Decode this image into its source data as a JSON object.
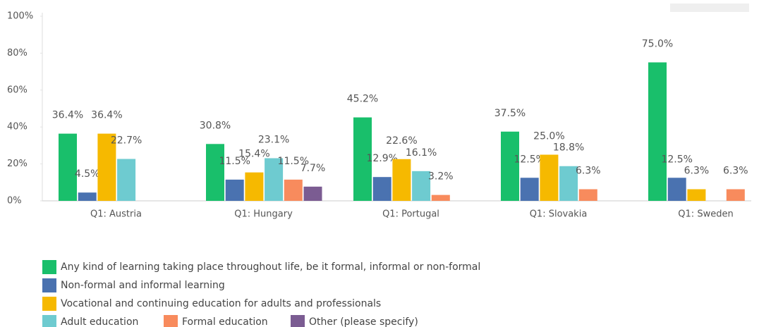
{
  "chart_data": {
    "type": "bar",
    "categories": [
      "Q1: Austria",
      "Q1: Hungary",
      "Q1: Portugal",
      "Q1: Slovakia",
      "Q1: Sweden"
    ],
    "series": [
      {
        "name": "Any kind of learning taking place throughout life, be it formal, informal or non-formal",
        "color": "#19bf6b",
        "values": [
          36.4,
          30.8,
          45.2,
          37.5,
          75.0
        ],
        "value_labels": [
          "36.4%",
          "30.8%",
          "45.2%",
          "37.5%",
          "75.0%"
        ]
      },
      {
        "name": "Non-formal and informal learning",
        "color": "#4a72b0",
        "values": [
          4.5,
          11.5,
          12.9,
          12.5,
          12.5
        ],
        "value_labels": [
          "4.5%",
          "11.5%",
          "12.9%",
          "12.5%",
          "12.5%"
        ]
      },
      {
        "name": "Vocational and continuing education for adults and professionals",
        "color": "#f6b900",
        "values": [
          36.4,
          15.4,
          22.6,
          25.0,
          6.3
        ],
        "value_labels": [
          "36.4%",
          "15.4%",
          "22.6%",
          "25.0%",
          "6.3%"
        ]
      },
      {
        "name": "Adult education",
        "color": "#6ecbd0",
        "values": [
          22.7,
          23.1,
          16.1,
          18.8,
          null
        ],
        "value_labels": [
          "22.7%",
          "23.1%",
          "16.1%",
          "18.8%",
          null
        ]
      },
      {
        "name": "Formal education",
        "color": "#f88b5d",
        "values": [
          null,
          11.5,
          3.2,
          6.3,
          6.3
        ],
        "value_labels": [
          null,
          "11.5%",
          "3.2%",
          "6.3%",
          "6.3%"
        ]
      },
      {
        "name": "Other (please specify)",
        "color": "#7b5c92",
        "values": [
          null,
          7.7,
          null,
          null,
          null
        ],
        "value_labels": [
          null,
          "7.7%",
          null,
          null,
          null
        ]
      }
    ],
    "ylim": [
      0,
      100
    ],
    "yticks": [
      {
        "value": 0,
        "label": "0%"
      },
      {
        "value": 20,
        "label": "20%"
      },
      {
        "value": 40,
        "label": "40%"
      },
      {
        "value": 60,
        "label": "60%"
      },
      {
        "value": 80,
        "label": "80%"
      },
      {
        "value": 100,
        "label": "100%"
      }
    ],
    "grid": false,
    "legend": "bottom-left"
  }
}
